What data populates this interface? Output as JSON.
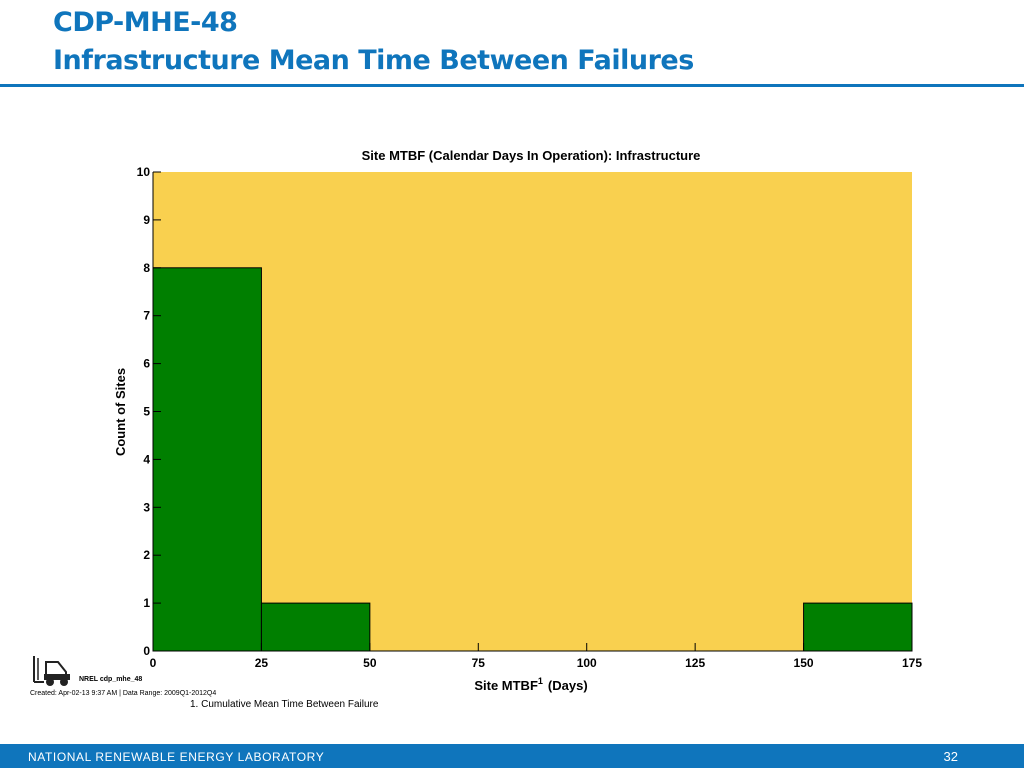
{
  "slide": {
    "title_line1": "CDP-MHE-48",
    "title_line2": "Infrastructure Mean Time Between Failures"
  },
  "chart_data": {
    "type": "bar",
    "title": "Site MTBF (Calendar Days In Operation): Infrastructure",
    "xlabel": "Site MTBF",
    "xlabel_superscript": "1",
    "xlabel_suffix": "(Days)",
    "ylabel": "Count of Sites",
    "bins": [
      {
        "start": 0,
        "end": 25,
        "count": 8
      },
      {
        "start": 25,
        "end": 50,
        "count": 1
      },
      {
        "start": 150,
        "end": 175,
        "count": 1
      }
    ],
    "xlim": [
      0,
      175
    ],
    "ylim": [
      0,
      10
    ],
    "xticks": [
      0,
      25,
      50,
      75,
      100,
      125,
      150,
      175
    ],
    "yticks": [
      0,
      1,
      2,
      3,
      4,
      5,
      6,
      7,
      8,
      9,
      10
    ],
    "plot_background": "#f9d04f",
    "bar_color": "#007f00",
    "grid": false
  },
  "meta_text": {
    "code_label": "NREL cdp_mhe_48",
    "created": "Created: Apr-02-13  9:37 AM | Data Range: 2009Q1-2012Q4",
    "footnote": "1. Cumulative Mean Time Between Failure"
  },
  "footer": {
    "org": "NATIONAL RENEWABLE ENERGY LABORATORY",
    "page": "32"
  },
  "colors": {
    "accent": "#0f75bc"
  },
  "icons": {
    "logo": "forklift-icon"
  }
}
